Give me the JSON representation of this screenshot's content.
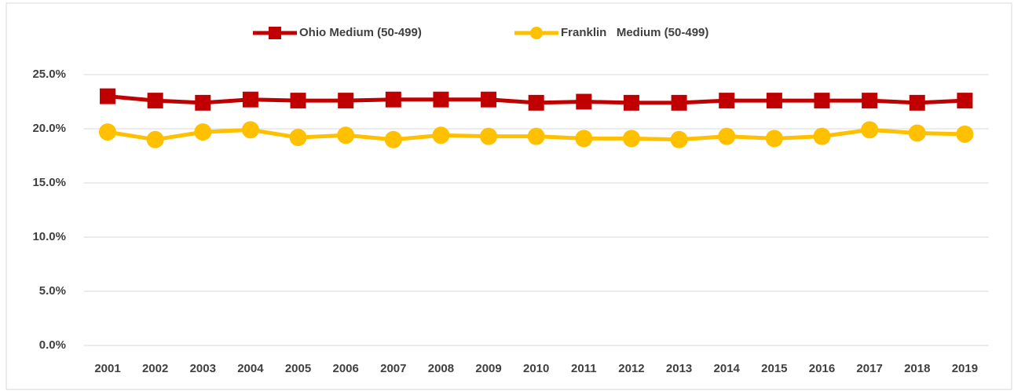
{
  "chart_data": {
    "type": "line",
    "categories": [
      "2001",
      "2002",
      "2003",
      "2004",
      "2005",
      "2006",
      "2007",
      "2008",
      "2009",
      "2010",
      "2011",
      "2012",
      "2013",
      "2014",
      "2015",
      "2016",
      "2017",
      "2018",
      "2019"
    ],
    "series": [
      {
        "name": "Ohio Medium (50-499)",
        "color": "#c00000",
        "marker": "square",
        "values": [
          23.0,
          22.6,
          22.4,
          22.7,
          22.6,
          22.6,
          22.7,
          22.7,
          22.7,
          22.4,
          22.5,
          22.4,
          22.4,
          22.6,
          22.6,
          22.6,
          22.6,
          22.4,
          22.6
        ]
      },
      {
        "name": "Franklin   Medium (50-499)",
        "color": "#ffc000",
        "marker": "circle",
        "values": [
          19.7,
          19.0,
          19.7,
          19.9,
          19.2,
          19.4,
          19.0,
          19.4,
          19.3,
          19.3,
          19.1,
          19.1,
          19.0,
          19.3,
          19.1,
          19.3,
          19.9,
          19.6,
          19.5
        ]
      }
    ],
    "ylim": [
      0,
      25
    ],
    "yticks": [
      {
        "value": 0,
        "label": "0.0%"
      },
      {
        "value": 5,
        "label": "5.0%"
      },
      {
        "value": 10,
        "label": "10.0%"
      },
      {
        "value": 15,
        "label": "15.0%"
      },
      {
        "value": 20,
        "label": "20.0%"
      },
      {
        "value": 25,
        "label": "25.0%"
      }
    ],
    "grid": true,
    "legend": "top"
  }
}
